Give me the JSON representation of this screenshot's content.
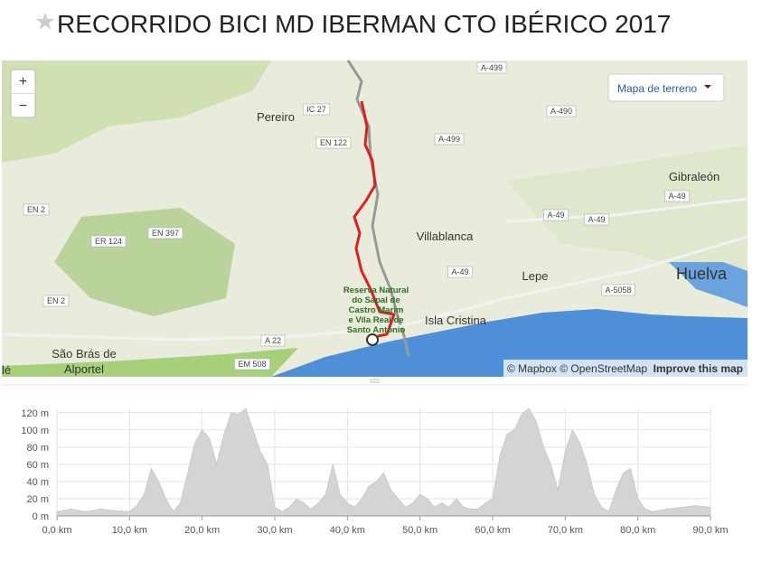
{
  "header": {
    "title": "RECORRIDO BICI MD IBERMAN CTO IBÉRICO 2017"
  },
  "map": {
    "zoom_in": "+",
    "zoom_out": "−",
    "layer_menu": "Mapa de terreno",
    "places": [
      "Pereiro",
      "Gibraleón",
      "Villablanca",
      "Lepe",
      "Isla Cristina",
      "Huelva",
      "lé"
    ],
    "place_lines": {
      "sao_bras": [
        "São Brás de",
        "Alportel"
      ],
      "reserve": [
        "Reserva Natural",
        "do Sapal de",
        "Castro Marim",
        "e Vila Real de",
        "Santo António"
      ]
    },
    "roads": [
      "A-499",
      "IC 27",
      "EN 122",
      "A-499",
      "A-490",
      "EN 2",
      "ER 124",
      "EN 397",
      "A-49",
      "A-49",
      "A-49",
      "A-49",
      "A-5058",
      "EN 2",
      "A 22",
      "EM 508"
    ],
    "attribution": "© Mapbox © OpenStreetMap",
    "improve": "Improve this map"
  },
  "chart_data": {
    "type": "area",
    "color": "#d4d4d4",
    "x": [
      0,
      2,
      4,
      6,
      8,
      10,
      11,
      12,
      13,
      14,
      15,
      16,
      17,
      18,
      19,
      20,
      21,
      22,
      23,
      24,
      25,
      26,
      27,
      28,
      29,
      30,
      31,
      32,
      33,
      34,
      35,
      36,
      37,
      38,
      39,
      40,
      41,
      42,
      43,
      44,
      45,
      46,
      47,
      48,
      49,
      50,
      51,
      52,
      53,
      54,
      55,
      56,
      57,
      58,
      59,
      60,
      61,
      62,
      63,
      64,
      65,
      66,
      67,
      68,
      69,
      70,
      71,
      72,
      73,
      74,
      75,
      76,
      77,
      78,
      79,
      80,
      81,
      82,
      84,
      86,
      88,
      90
    ],
    "values": [
      5,
      8,
      5,
      8,
      6,
      5,
      12,
      25,
      55,
      40,
      20,
      5,
      15,
      50,
      85,
      100,
      90,
      60,
      95,
      120,
      118,
      125,
      100,
      75,
      60,
      10,
      5,
      10,
      20,
      15,
      8,
      15,
      25,
      60,
      25,
      15,
      10,
      20,
      35,
      40,
      50,
      30,
      20,
      10,
      15,
      25,
      20,
      10,
      15,
      10,
      20,
      10,
      8,
      8,
      15,
      20,
      70,
      95,
      100,
      118,
      125,
      110,
      80,
      60,
      30,
      75,
      100,
      85,
      60,
      25,
      10,
      5,
      30,
      50,
      55,
      20,
      8,
      5,
      8,
      10,
      12,
      10
    ],
    "xlim": [
      0,
      90
    ],
    "ylim": [
      0,
      125
    ],
    "xticks": [
      {
        "value": 0,
        "label": "0,0 km"
      },
      {
        "value": 10,
        "label": "10,0 km"
      },
      {
        "value": 20,
        "label": "20,0 km"
      },
      {
        "value": 30,
        "label": "30,0 km"
      },
      {
        "value": 40,
        "label": "40,0 km"
      },
      {
        "value": 50,
        "label": "50,0 km"
      },
      {
        "value": 60,
        "label": "60,0 km"
      },
      {
        "value": 70,
        "label": "70,0 km"
      },
      {
        "value": 80,
        "label": "80,0 km"
      },
      {
        "value": 90,
        "label": "90,0 km"
      }
    ],
    "yticks": [
      {
        "value": 0,
        "label": "0 m"
      },
      {
        "value": 20,
        "label": "20 m"
      },
      {
        "value": 40,
        "label": "40 m"
      },
      {
        "value": 60,
        "label": "60 m"
      },
      {
        "value": 80,
        "label": "80 m"
      },
      {
        "value": 100,
        "label": "100 m"
      },
      {
        "value": 120,
        "label": "120 m"
      }
    ],
    "grid": true
  }
}
